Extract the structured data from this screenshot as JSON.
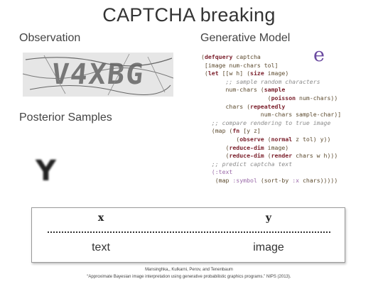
{
  "title": "CAPTCHA breaking",
  "observation": {
    "heading": "Observation",
    "captcha_text": "V4XBG"
  },
  "posterior": {
    "heading": "Posterior Samples",
    "sample_glyph": "Y"
  },
  "generative": {
    "heading": "Generative Model",
    "logo": "e",
    "code": {
      "l1": [
        "(",
        "defquery",
        " captcha"
      ],
      "l2": " [image num-chars tol]",
      "l3": [
        " (",
        "let",
        " [[w h] (",
        "size",
        " image)"
      ],
      "l4": "       ;; sample random characters",
      "l5": [
        "       num-chars (",
        "sample"
      ],
      "l6": [
        "                   (",
        "poisson",
        " num-chars))"
      ],
      "l7": [
        "       chars (",
        "repeatedly"
      ],
      "l8": "                 num-chars sample-char)]",
      "l9": "   ;; compare rendering to true image",
      "l10": [
        "   (map (",
        "fn",
        " [y z]"
      ],
      "l11": [
        "          (",
        "observe",
        " (",
        "normal",
        " z tol) y))"
      ],
      "l12": [
        "       (",
        "reduce-dim",
        " image)"
      ],
      "l13": [
        "       (",
        "reduce-dim",
        " (",
        "render",
        " chars w h)))"
      ],
      "l14": "   ;; predict captcha text",
      "l15": "   (:text",
      "l16": [
        "    (map ",
        ":symbol",
        " (sort-by ",
        ":x",
        " chars)))))"
      ]
    }
  },
  "table": {
    "headers": [
      "x",
      "y"
    ],
    "values": [
      "text",
      "image"
    ]
  },
  "citation": {
    "authors": "Mansinghka,, Kulkarni, Perov, and Tenenbaum",
    "reference": "“Approximate Bayesian image interpretation using generative probabilistic graphics programs.” NIPS (2013)."
  }
}
